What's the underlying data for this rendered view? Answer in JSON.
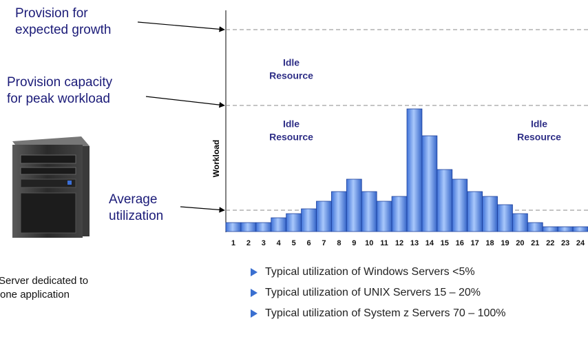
{
  "chart_data": {
    "type": "bar",
    "y_label": "Workload",
    "categories": [
      "1",
      "2",
      "3",
      "4",
      "5",
      "6",
      "7",
      "8",
      "9",
      "10",
      "11",
      "12",
      "13",
      "14",
      "15",
      "16",
      "17",
      "18",
      "19",
      "20",
      "21",
      "22",
      "23",
      "24"
    ],
    "values": [
      13,
      13,
      13,
      20,
      26,
      33,
      44,
      58,
      76,
      58,
      44,
      51,
      178,
      139,
      90,
      76,
      58,
      51,
      39,
      26,
      13,
      7,
      7,
      7
    ],
    "color": "#6f9ff0",
    "ylim": [
      0,
      321
    ],
    "reference_lines": [
      {
        "label": [
          "Provision for",
          "expected growth"
        ],
        "value": 293
      },
      {
        "label": [
          "Provision capacity",
          "for peak workload"
        ],
        "value": 183
      },
      {
        "label": [
          "Average",
          "utilization"
        ],
        "value": 31
      }
    ],
    "annotations": [
      [
        "Idle",
        "Resource"
      ],
      [
        "Idle",
        "Resource"
      ],
      [
        "Idle",
        "Resource"
      ]
    ]
  },
  "caption": [
    "Server dedicated to",
    "one application"
  ],
  "bullets": [
    "Typical utilization of Windows Servers <5%",
    "Typical utilization of UNIX Servers 15 – 20%",
    "Typical utilization of System z Servers 70 – 100%"
  ]
}
